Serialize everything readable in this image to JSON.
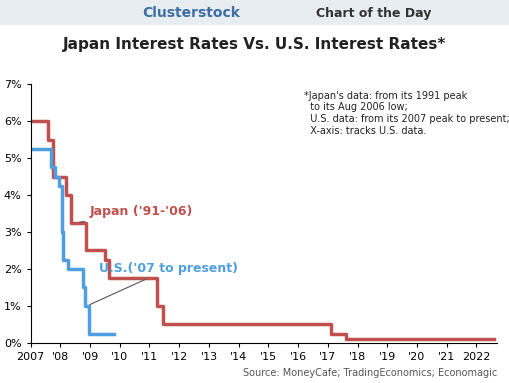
{
  "chart_data": {
    "type": "line",
    "header": {
      "brand": "Clusterstock",
      "tagline": "Chart of the Day"
    },
    "title": "Japan Interest Rates Vs. U.S. Interest Rates*",
    "annotations": [
      "*Japan's data: from its 1991 peak\n  to its Aug 2006 low;\n  U.S. data: from its 2007 peak to present;\n  X-axis: tracks U.S. data.",
      "Source: MoneyCafe; TradingEconomics; Economagic"
    ],
    "line_style": "steps",
    "grid": false,
    "xlim": [
      2007.0,
      2022.7
    ],
    "xticks": [
      {
        "value": 2007,
        "label": "2007"
      },
      {
        "value": 2008,
        "label": "'08"
      },
      {
        "value": 2009,
        "label": "'09"
      },
      {
        "value": 2010,
        "label": "'10"
      },
      {
        "value": 2011,
        "label": "'11"
      },
      {
        "value": 2012,
        "label": "'12"
      },
      {
        "value": 2013,
        "label": "'13"
      },
      {
        "value": 2014,
        "label": "'14"
      },
      {
        "value": 2015,
        "label": "'15"
      },
      {
        "value": 2016,
        "label": "'16"
      },
      {
        "value": 2017,
        "label": "'17"
      },
      {
        "value": 2018,
        "label": "'18"
      },
      {
        "value": 2019,
        "label": "'19"
      },
      {
        "value": 2020,
        "label": "'20"
      },
      {
        "value": 2021,
        "label": "'21"
      },
      {
        "value": 2022,
        "label": "2022"
      }
    ],
    "ylim": [
      0,
      7
    ],
    "yticks": [
      {
        "value": 0,
        "label": "0%"
      },
      {
        "value": 1,
        "label": "1%"
      },
      {
        "value": 2,
        "label": "2%"
      },
      {
        "value": 3,
        "label": "3%"
      },
      {
        "value": 4,
        "label": "4%"
      },
      {
        "value": 5,
        "label": "5%"
      },
      {
        "value": 6,
        "label": "6%"
      },
      {
        "value": 7,
        "label": "7%"
      }
    ],
    "series": [
      {
        "name": "Japan ('91-'06)",
        "color": "#c0504d",
        "x": [
          2007.0,
          2007.6,
          2007.75,
          2008.2,
          2008.35,
          2008.85,
          2009.5,
          2009.65,
          2011.25,
          2011.45,
          2017.1,
          2017.6,
          2022.6
        ],
        "values": [
          6.0,
          5.5,
          4.5,
          4.0,
          3.25,
          2.5,
          2.25,
          1.75,
          1.0,
          0.5,
          0.25,
          0.1,
          0.1
        ]
      },
      {
        "name": "U.S.('07 to present)",
        "color": "#4f9fe0",
        "x": [
          2007.0,
          2007.7,
          2007.83,
          2007.95,
          2008.05,
          2008.1,
          2008.25,
          2008.75,
          2008.82,
          2008.95,
          2009.8
        ],
        "values": [
          5.25,
          4.75,
          4.5,
          4.25,
          3.0,
          2.25,
          2.0,
          1.5,
          1.0,
          0.25,
          0.25
        ]
      }
    ]
  }
}
